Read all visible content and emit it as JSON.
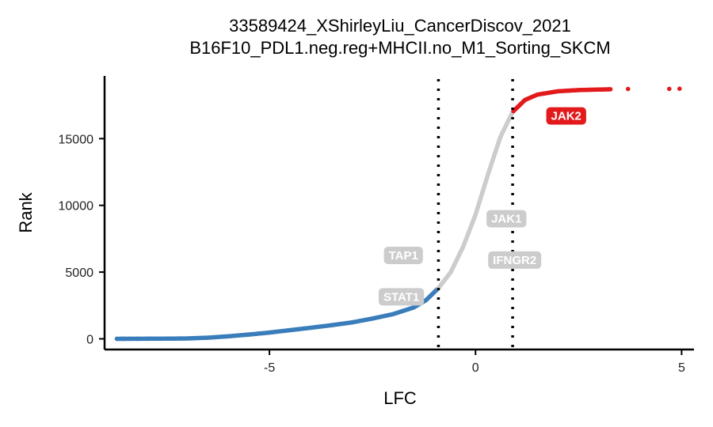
{
  "chart_data": {
    "type": "scatter",
    "title": "33589424_XShirleyLiu_CancerDiscov_2021",
    "subtitle": "B16F10_PDL1.neg.reg+MHCII.no_M1_Sorting_SKCM",
    "xlabel": "LFC",
    "ylabel": "Rank",
    "xlim": [
      -9.0,
      5.3
    ],
    "ylim": [
      -800,
      19700
    ],
    "x_ticks": [
      -5,
      0,
      5
    ],
    "y_ticks": [
      0,
      5000,
      10000,
      15000
    ],
    "x_tick_labels": [
      "-5",
      "0",
      "5"
    ],
    "y_tick_labels": [
      "0",
      "5000",
      "10000",
      "15000"
    ],
    "thresholds": [
      -0.9,
      0.9
    ],
    "grid": false,
    "legend": "none",
    "colors": {
      "low": "#3a7dbb",
      "mid": "#cccccc",
      "high": "#e31a1c"
    },
    "curve": [
      [
        -8.7,
        0
      ],
      [
        -8.0,
        8
      ],
      [
        -7.5,
        15
      ],
      [
        -7.0,
        30
      ],
      [
        -6.5,
        85
      ],
      [
        -6.0,
        190
      ],
      [
        -5.5,
        320
      ],
      [
        -5.0,
        470
      ],
      [
        -4.5,
        650
      ],
      [
        -4.0,
        830
      ],
      [
        -3.5,
        1020
      ],
      [
        -3.0,
        1230
      ],
      [
        -2.5,
        1520
      ],
      [
        -2.0,
        1850
      ],
      [
        -1.5,
        2350
      ],
      [
        -1.2,
        2900
      ],
      [
        -0.9,
        3800
      ],
      [
        -0.6,
        5000
      ],
      [
        -0.3,
        6900
      ],
      [
        0.0,
        9300
      ],
      [
        0.3,
        12300
      ],
      [
        0.6,
        15100
      ],
      [
        0.9,
        17000
      ],
      [
        1.2,
        17900
      ],
      [
        1.5,
        18300
      ],
      [
        2.0,
        18550
      ],
      [
        2.5,
        18640
      ],
      [
        3.0,
        18680
      ],
      [
        3.3,
        18700
      ]
    ],
    "outliers_high": [
      [
        3.7,
        18720
      ],
      [
        4.7,
        18730
      ],
      [
        4.95,
        18740
      ]
    ],
    "outliers_low": [
      [
        -8.7,
        5
      ],
      [
        -8.55,
        6
      ],
      [
        -8.4,
        8
      ],
      [
        -8.2,
        10
      ]
    ],
    "labels": [
      {
        "text": "JAK2",
        "x": 2.2,
        "y": 16700,
        "color": "#e31a1c"
      },
      {
        "text": "JAK1",
        "x": 0.75,
        "y": 9000,
        "color": "#cccccc"
      },
      {
        "text": "IFNGR2",
        "x": 0.95,
        "y": 5900,
        "color": "#cccccc"
      },
      {
        "text": "TAP1",
        "x": -1.75,
        "y": 6250,
        "color": "#cccccc"
      },
      {
        "text": "STAT1",
        "x": -1.8,
        "y": 3150,
        "color": "#cccccc"
      }
    ]
  }
}
